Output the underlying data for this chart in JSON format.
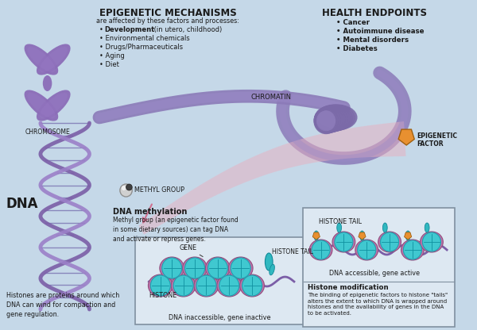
{
  "bg_color": "#c5d8e8",
  "title": "EPIGENETIC MECHANISMS",
  "title_subtitle": "are affected by these factors and processes:",
  "factors": [
    "Development (in utero, childhood)",
    "Environmental chemicals",
    "Drugs/Pharmaceuticals",
    "Aging",
    "Diet"
  ],
  "health_title": "HEALTH ENDPOINTS",
  "health_items": [
    "Cancer",
    "Autoimmune disease",
    "Mental disorders",
    "Diabetes"
  ],
  "labels": {
    "chromosome": "CHROMOSOME",
    "methyl_group": "METHYL GROUP",
    "chromatin": "CHROMATIN",
    "dna": "DNA",
    "epigenetic_factor_line1": "EPIGENETIC",
    "epigenetic_factor_line2": "FACTOR",
    "histone_tail": "HISTONE TAIL",
    "gene": "GENE",
    "histone": "HISTONE",
    "dna_inaccessible": "DNA inaccessible, gene inactive",
    "dna_accessible": "DNA accessible, gene active",
    "dna_methylation_title": "DNA methylation",
    "dna_methylation_text": "Methyl group (an epigenetic factor found\nin some dietary sources) can tag DNA\nand activate or repress genes.",
    "histones_note": "Histones are proteins around which\nDNA can wind for compaction and\ngene regulation.",
    "histone_mod_title": "Histone modification",
    "histone_mod_text": "The binding of epigenetic factors to histone \"tails\"\nalters the extent to which DNA is wrapped around\nhistones and the availability of genes in the DNA\nto be activated."
  },
  "colors": {
    "bg": "#c5d8e8",
    "chromosome": "#8B6DB8",
    "dna_strand": "#7B5EA7",
    "dna_strand2": "#9B80C8",
    "chromatin_tube": "#8B7AB8",
    "chromatin_coil": "#7B6AA8",
    "histone_sphere": "#40C8D0",
    "histone_ring": "#C070A8",
    "methyl_gray": "#C0C0C0",
    "methyl_dark": "#404040",
    "epigenetic_factor": "#E89030",
    "arrow_pink": "#E8A0B8",
    "text_dark": "#1a1a1a",
    "box_bg": "#dce8f0",
    "box_border": "#8090a0",
    "histone_tail_teal": "#30B8C0",
    "pink_swoosh": "#E8B0C0"
  }
}
